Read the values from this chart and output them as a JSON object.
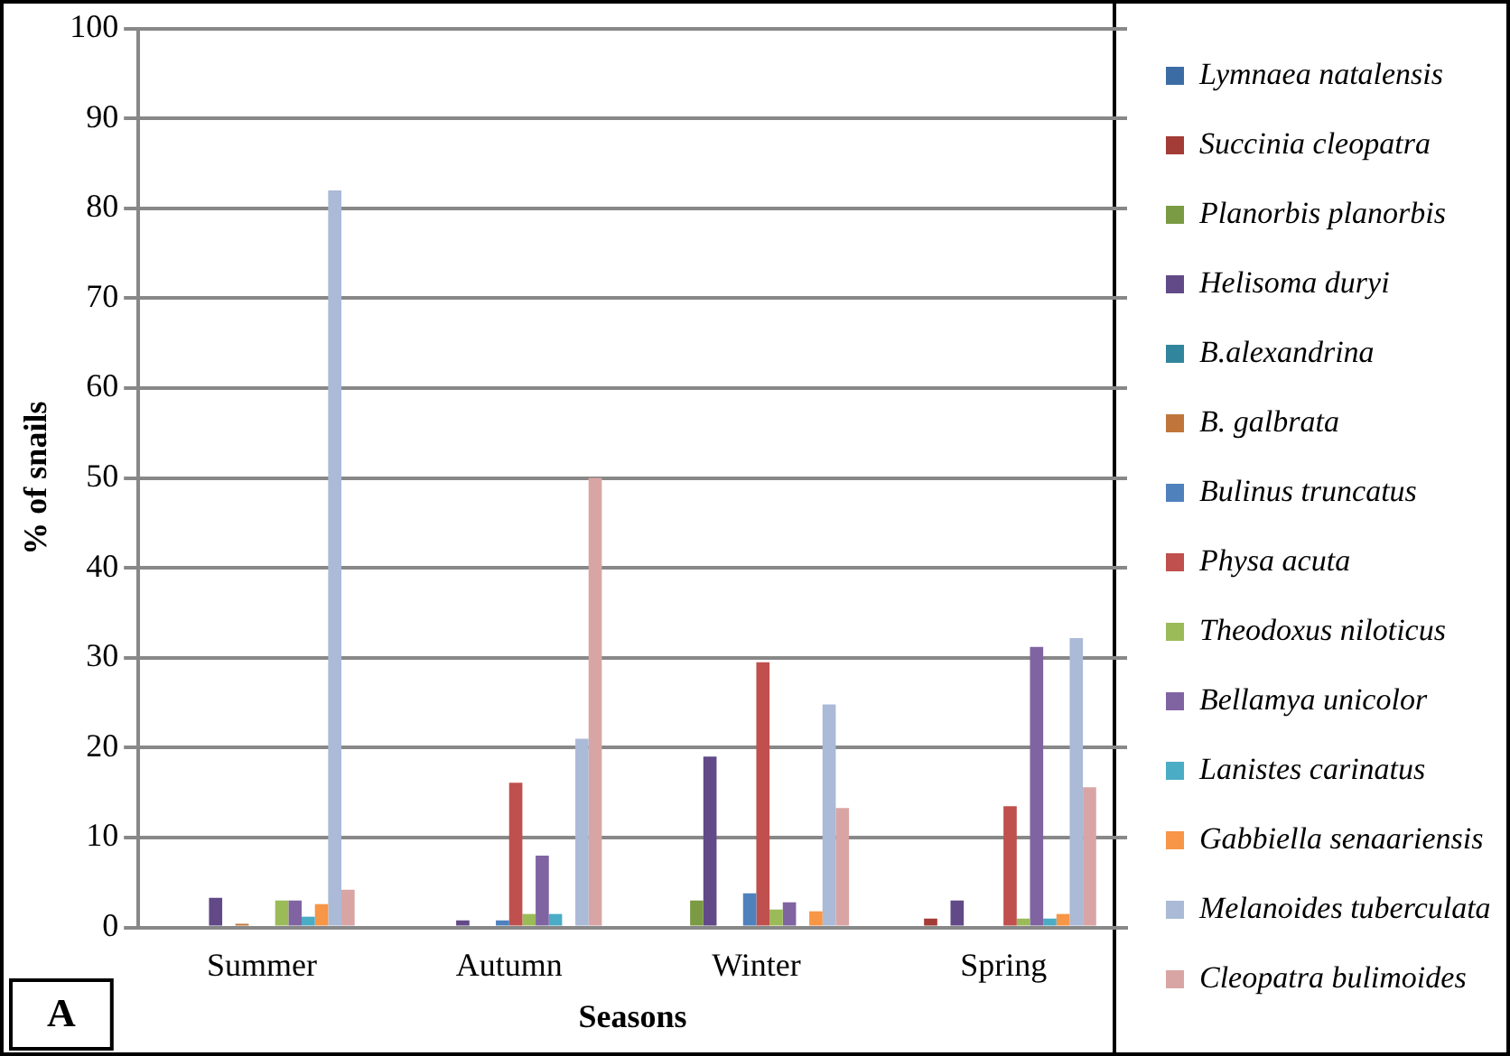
{
  "chart_data": {
    "type": "bar",
    "xlabel": "Seasons",
    "ylabel": "% of snails",
    "categories": [
      "Summer",
      "Autumn",
      "Winter",
      "Spring"
    ],
    "ylim": [
      0,
      100
    ],
    "yticks": [
      0,
      10,
      20,
      30,
      40,
      50,
      60,
      70,
      80,
      90,
      100
    ],
    "grid": "y",
    "legend": "right",
    "annotations": [
      "A"
    ],
    "series": [
      {
        "name": "Lymnaea natalensis",
        "color": "#3c6ca4",
        "values": [
          0,
          0,
          0,
          0
        ]
      },
      {
        "name": "Succinia cleopatra",
        "color": "#a33b36",
        "values": [
          0,
          0,
          0,
          1
        ]
      },
      {
        "name": "Planorbis planorbis",
        "color": "#7a9a44",
        "values": [
          0,
          0,
          3,
          0
        ]
      },
      {
        "name": "Helisoma duryi",
        "color": "#614a87",
        "values": [
          3.3,
          0.8,
          19,
          3
        ]
      },
      {
        "name": "B.alexandrina",
        "color": "#31859c",
        "values": [
          0,
          0,
          0,
          0
        ]
      },
      {
        "name": "B. galbrata",
        "color": "#c0763a",
        "values": [
          0.4,
          0,
          0,
          0
        ]
      },
      {
        "name": "Bulinus truncatus",
        "color": "#4f81bd",
        "values": [
          0,
          0.8,
          3.8,
          0
        ]
      },
      {
        "name": "Physa acuta",
        "color": "#c0504d",
        "values": [
          0,
          16.1,
          29.5,
          13.5
        ]
      },
      {
        "name": "Theodoxus niloticus",
        "color": "#9bbb59",
        "values": [
          3,
          1.5,
          2,
          1
        ]
      },
      {
        "name": "Bellamya unicolor",
        "color": "#8064a2",
        "values": [
          3,
          8,
          2.8,
          31.2
        ]
      },
      {
        "name": "Lanistes carinatus",
        "color": "#4bacc6",
        "values": [
          1.2,
          1.5,
          0,
          1
        ]
      },
      {
        "name": "Gabbiella senaariensis",
        "color": "#f79646",
        "values": [
          2.6,
          0,
          1.8,
          1.5
        ]
      },
      {
        "name": "Melanoides tuberculata",
        "color": "#aabad7",
        "values": [
          82,
          21,
          24.8,
          32.2
        ]
      },
      {
        "name": "Cleopatra bulimoides",
        "color": "#d9a5a4",
        "values": [
          4.2,
          50,
          13.3,
          15.6
        ]
      }
    ]
  }
}
